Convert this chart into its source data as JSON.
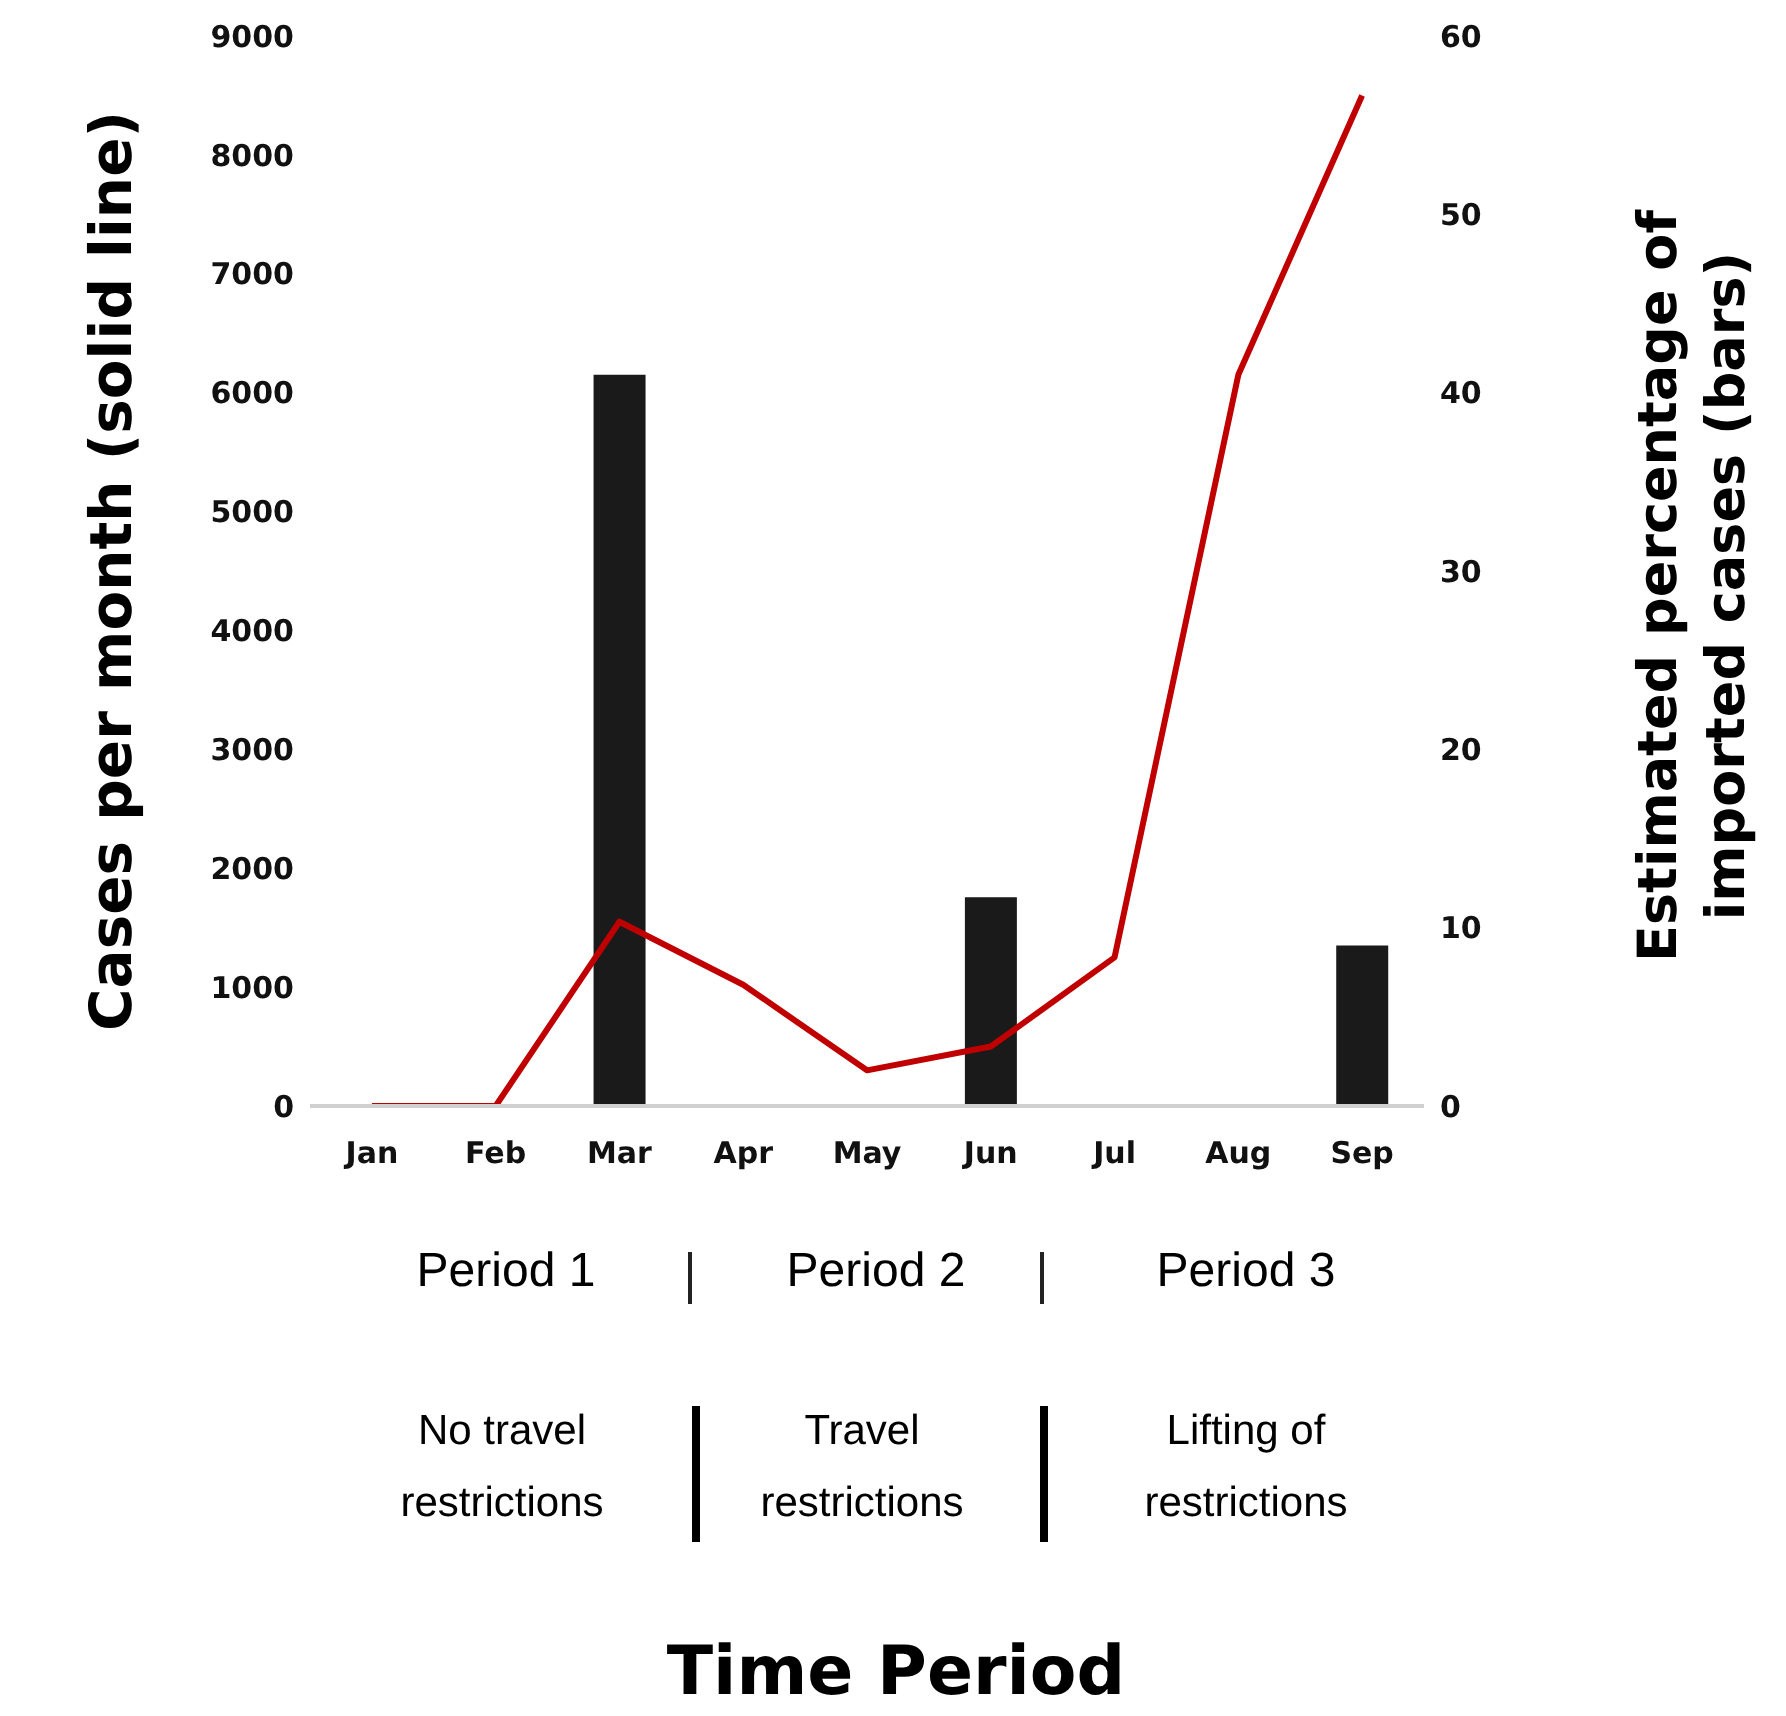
{
  "chart_data": {
    "type": "bar",
    "ylabel": "Cases per month (solid line)",
    "y2label": "Estimated percentage of imported cases (bars)",
    "categories": [
      "Jan",
      "Feb",
      "Mar",
      "Apr",
      "May",
      "Jun",
      "Jul",
      "Aug",
      "Sep"
    ],
    "series": [
      {
        "axis": "y2",
        "color": "#1a1a1a",
        "values": [
          null,
          null,
          41,
          null,
          null,
          11.7,
          null,
          null,
          9
        ]
      },
      {
        "type": "line",
        "axis": "y",
        "color": "#c00000",
        "values": [
          0,
          0,
          1550,
          1020,
          300,
          500,
          1250,
          6150,
          8500
        ]
      }
    ],
    "ylim": [
      0,
      9000
    ],
    "yticks": [
      0,
      1000,
      2000,
      3000,
      4000,
      5000,
      6000,
      7000,
      8000,
      9000
    ],
    "y2lim": [
      0,
      60
    ],
    "y2ticks": [
      0,
      10,
      20,
      30,
      40,
      50,
      60
    ],
    "grid": false,
    "legend": false,
    "annotations": [
      "Period 1",
      "Period 2",
      "Period 3",
      "No travel restrictions",
      "Travel restrictions",
      "Lifting of restrictions",
      "Time Period"
    ]
  }
}
